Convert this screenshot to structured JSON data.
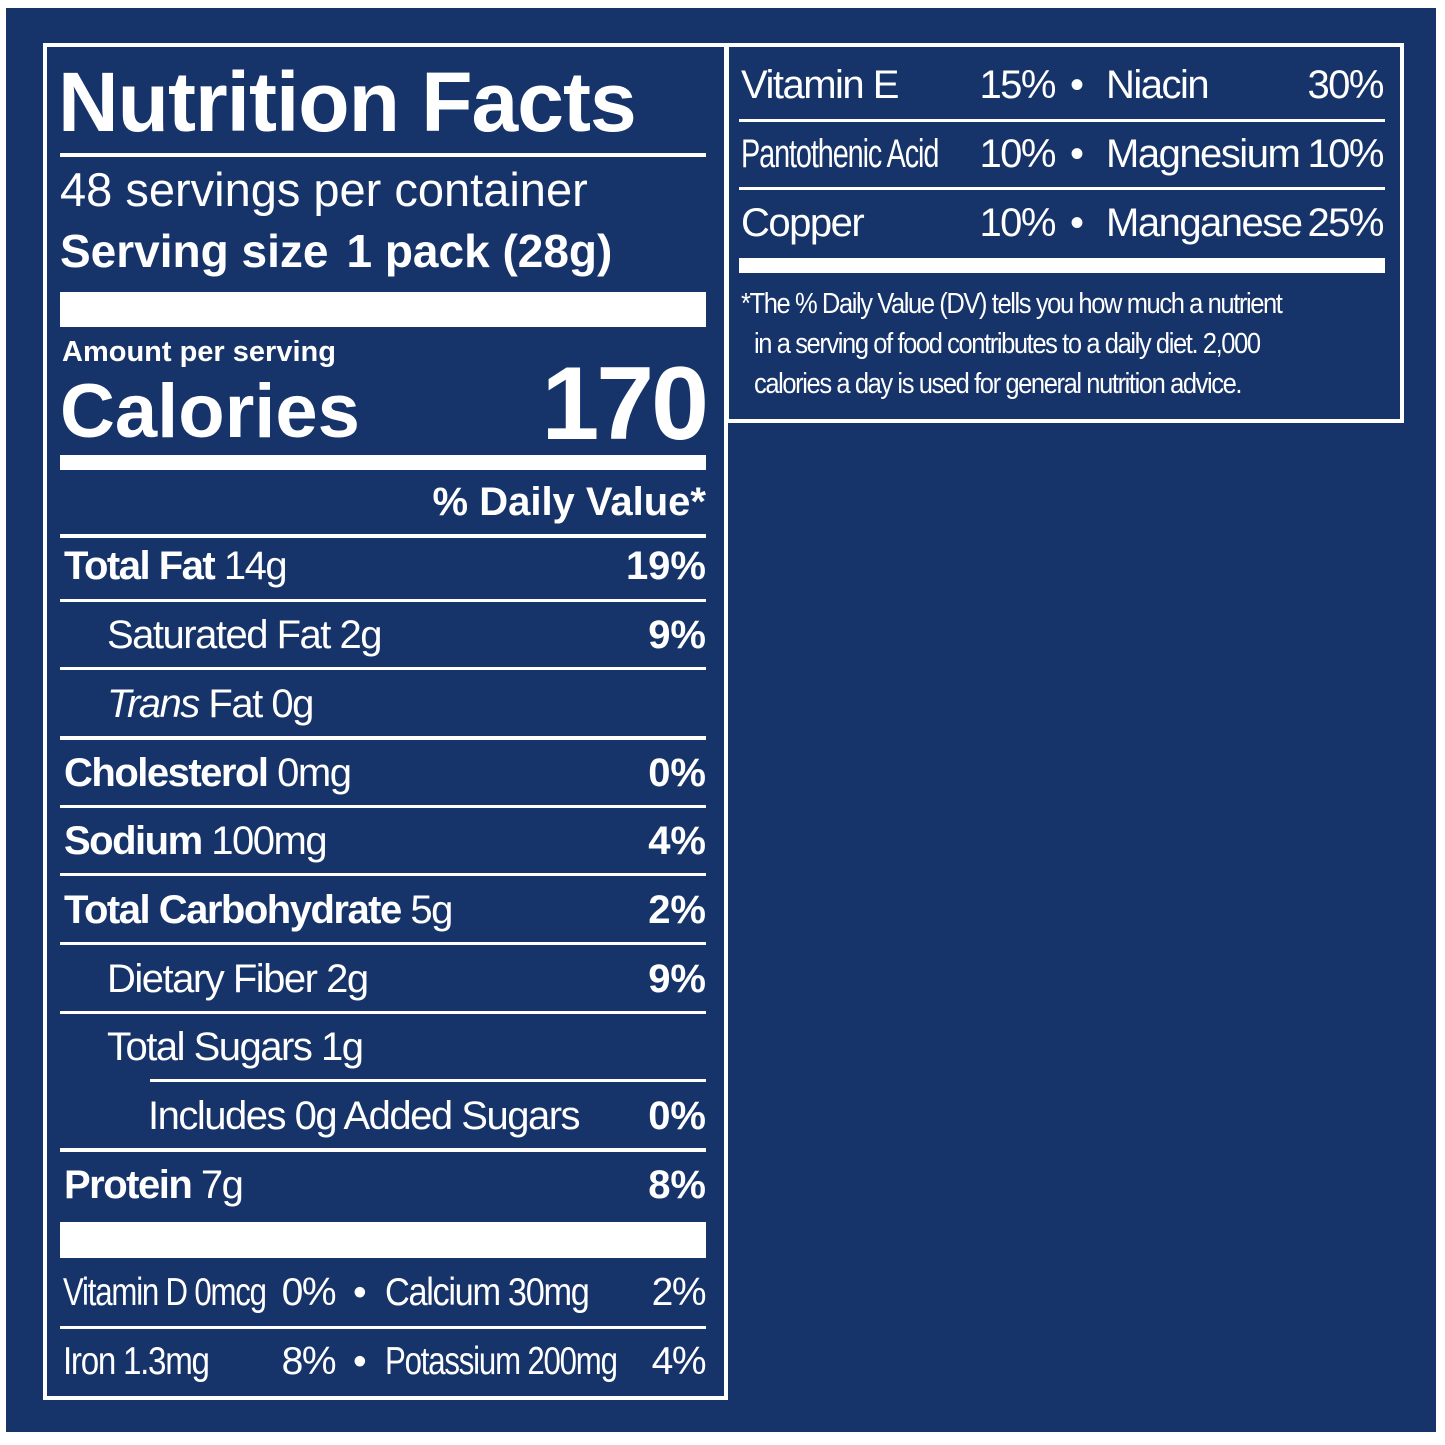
{
  "title": "Nutrition Facts",
  "servings_per_container": "48 servings per container",
  "serving_size_label": "Serving size",
  "serving_size_value": "1 pack (28g)",
  "amount_per_serving": "Amount per serving",
  "calories_label": "Calories",
  "calories_value": "170",
  "daily_value_header": "% Daily Value*",
  "nutrients": [
    {
      "name": "Total Fat",
      "amount": "14g",
      "dv": "19%"
    },
    {
      "name": "Saturated Fat",
      "amount": "2g",
      "dv": "9%"
    },
    {
      "name": "Trans",
      "suffix": "Fat",
      "amount": "0g",
      "dv": ""
    },
    {
      "name": "Cholesterol",
      "amount": "0mg",
      "dv": "0%"
    },
    {
      "name": "Sodium",
      "amount": "100mg",
      "dv": "4%"
    },
    {
      "name": "Total Carbohydrate",
      "amount": "5g",
      "dv": "2%"
    },
    {
      "name": "Dietary Fiber",
      "amount": "2g",
      "dv": "9%"
    },
    {
      "name": "Total Sugars",
      "amount": "1g",
      "dv": ""
    },
    {
      "name": "Includes 0g Added Sugars",
      "amount": "",
      "dv": "0%"
    },
    {
      "name": "Protein",
      "amount": "7g",
      "dv": "8%"
    }
  ],
  "minerals_left": [
    [
      {
        "name": "Vitamin D 0mcg",
        "dv": "0%"
      },
      {
        "name": "Calcium 30mg",
        "dv": "2%"
      }
    ],
    [
      {
        "name": "Iron 1.3mg",
        "dv": "8%"
      },
      {
        "name": "Potassium 200mg",
        "dv": "4%"
      }
    ]
  ],
  "minerals_right": [
    [
      {
        "name": "Vitamin E",
        "dv": "15%"
      },
      {
        "name": "Niacin",
        "dv": "30%"
      }
    ],
    [
      {
        "name": "Pantothenic Acid",
        "dv": "10%"
      },
      {
        "name": "Magnesium",
        "dv": "10%"
      }
    ],
    [
      {
        "name": "Copper",
        "dv": "10%"
      },
      {
        "name": "Manganese",
        "dv": "25%"
      }
    ]
  ],
  "bullet": "•",
  "footnote": [
    "*The % Daily Value (DV) tells you how much a nutrient",
    "in a serving of food contributes to a daily diet. 2,000",
    "calories a day is used for general nutrition advice."
  ],
  "colors": {
    "background": "#17346a",
    "text": "#ffffff"
  }
}
